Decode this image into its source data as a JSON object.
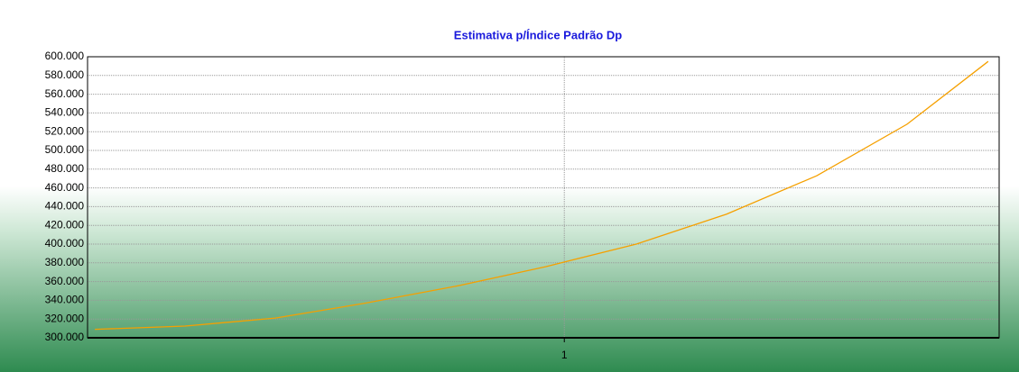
{
  "chart_data": {
    "type": "line",
    "title": "Estimativa p/Índice Padrão Dp",
    "x": [
      0.485,
      0.584,
      0.683,
      0.782,
      0.881,
      0.98,
      1.079,
      1.178,
      1.277,
      1.376,
      1.465
    ],
    "series": [
      {
        "name": "Estimativa",
        "color": "#f5a000",
        "values": [
          309000,
          312500,
          321000,
          337000,
          355000,
          376000,
          400000,
          432000,
          473000,
          528000,
          595000
        ]
      }
    ],
    "xlim": [
      0.477,
      1.477
    ],
    "xticks": [
      1
    ],
    "ylim": [
      300000,
      600000
    ],
    "yticks": [
      {
        "value": 300000,
        "label": "300.000"
      },
      {
        "value": 320000,
        "label": "320.000"
      },
      {
        "value": 340000,
        "label": "340.000"
      },
      {
        "value": 360000,
        "label": "360.000"
      },
      {
        "value": 380000,
        "label": "380.000"
      },
      {
        "value": 400000,
        "label": "400.000"
      },
      {
        "value": 420000,
        "label": "420.000"
      },
      {
        "value": 440000,
        "label": "440.000"
      },
      {
        "value": 460000,
        "label": "460.000"
      },
      {
        "value": 480000,
        "label": "480.000"
      },
      {
        "value": 500000,
        "label": "500.000"
      },
      {
        "value": 520000,
        "label": "520.000"
      },
      {
        "value": 540000,
        "label": "540.000"
      },
      {
        "value": 560000,
        "label": "560.000"
      },
      {
        "value": 580000,
        "label": "580.000"
      },
      {
        "value": 600000,
        "label": "600.000"
      }
    ],
    "grid": true
  }
}
